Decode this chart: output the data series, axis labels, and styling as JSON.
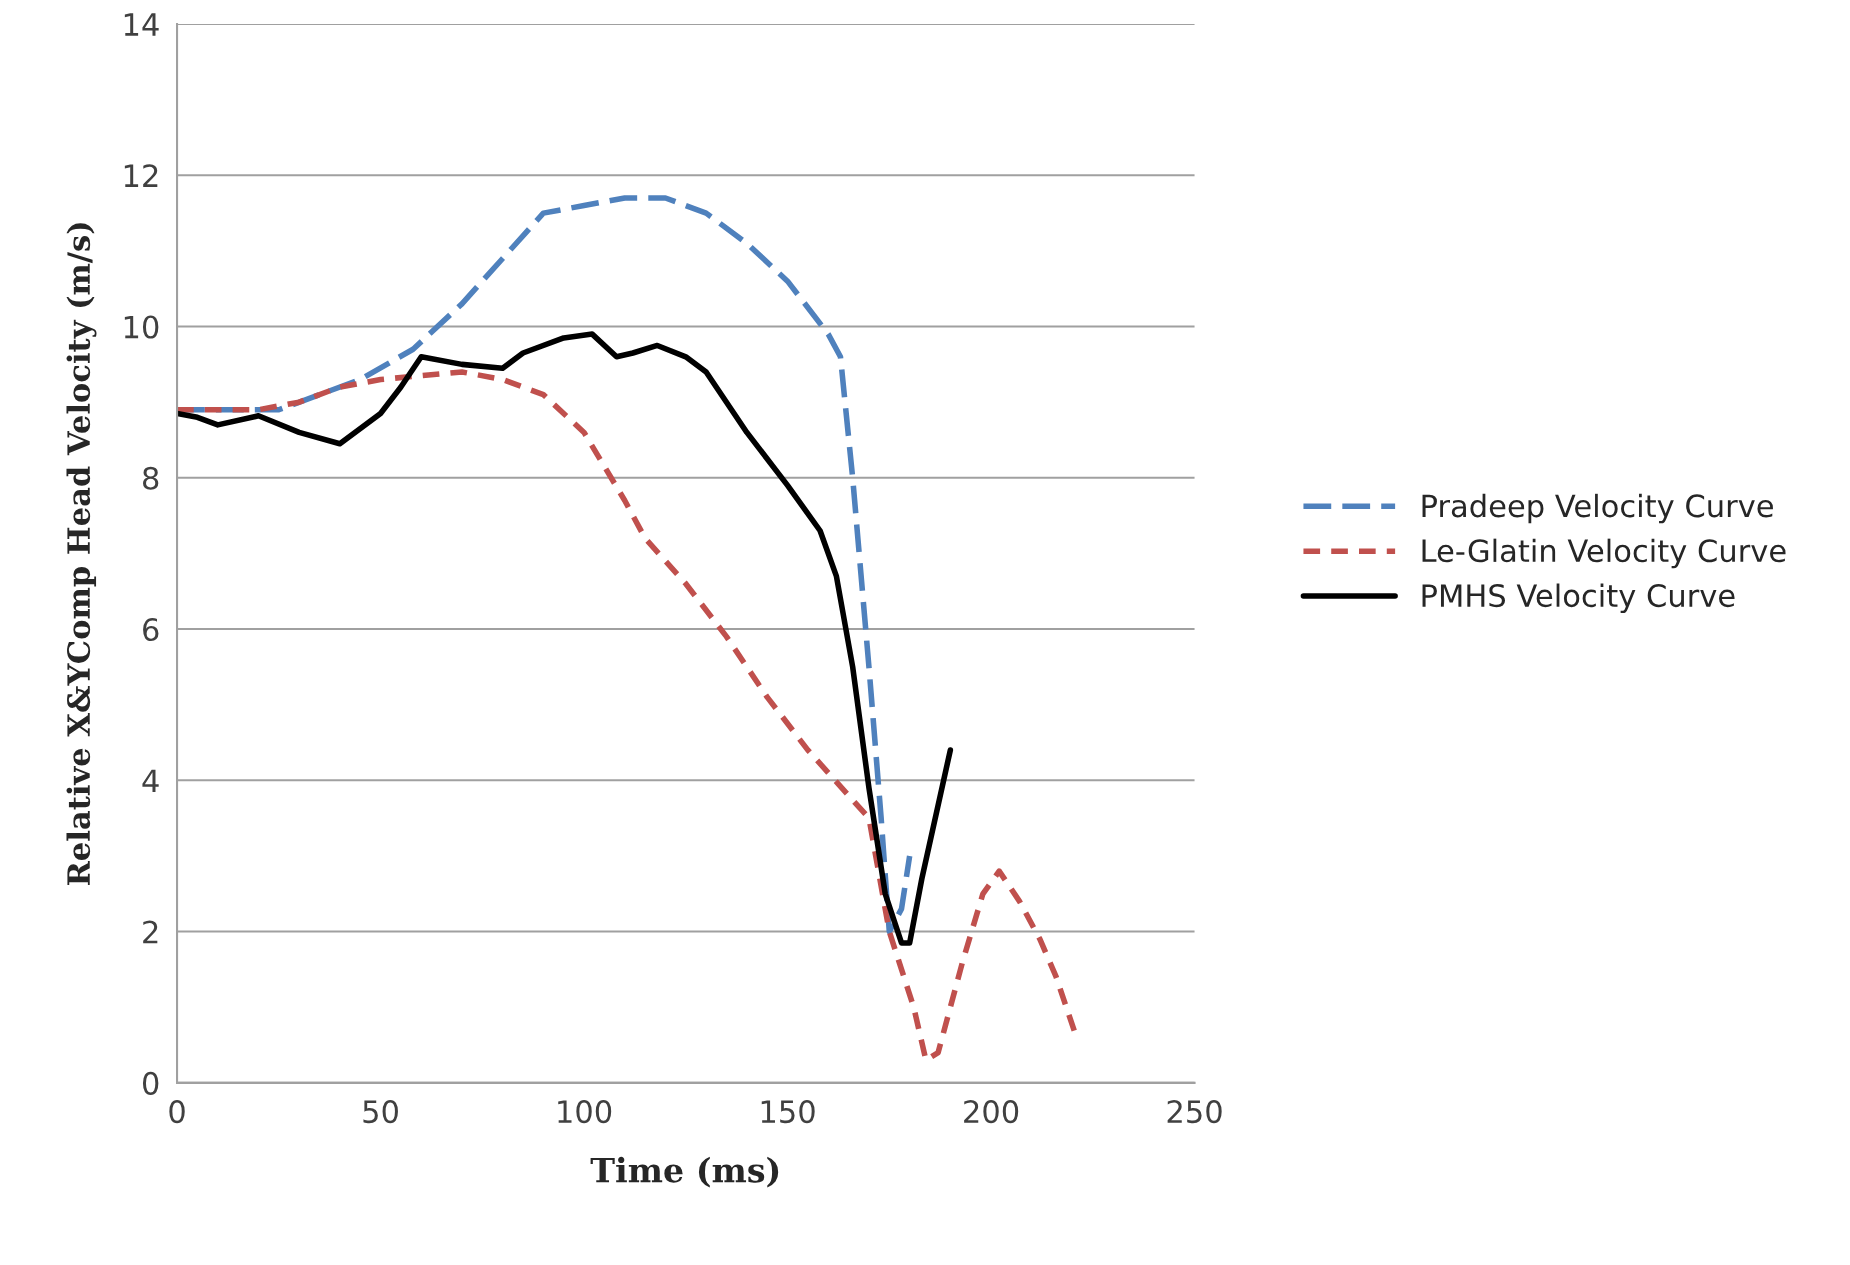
{
  "chart_data": {
    "type": "line",
    "xlabel": "Time (ms)",
    "ylabel": "Relative X&YComp Head Velocity (m/s)",
    "xlim": [
      0,
      250
    ],
    "ylim": [
      0,
      14
    ],
    "xticks": [
      0,
      50,
      100,
      150,
      200,
      250
    ],
    "yticks": [
      0,
      2,
      4,
      6,
      8,
      10,
      12,
      14
    ],
    "grid": "y",
    "legend": "right",
    "marker": "none",
    "series": [
      {
        "name": "Pradeep Velocity Curve",
        "color": "#4f81bd",
        "line_style": "dashed",
        "x": [
          0,
          15,
          25,
          35,
          45,
          58,
          70,
          80,
          90,
          100,
          110,
          120,
          130,
          140,
          150,
          160,
          163,
          166,
          170,
          173,
          175,
          178,
          180
        ],
        "values": [
          8.9,
          8.9,
          8.9,
          9.1,
          9.3,
          9.7,
          10.3,
          10.9,
          11.5,
          11.6,
          11.7,
          11.7,
          11.5,
          11.1,
          10.6,
          9.9,
          9.6,
          8.0,
          5.5,
          3.5,
          2.0,
          2.3,
          3.0
        ]
      },
      {
        "name": "Le-Glatin Velocity Curve",
        "color": "#c0504d",
        "line_style": "dotted",
        "x": [
          0,
          20,
          30,
          40,
          50,
          60,
          70,
          80,
          90,
          100,
          110,
          115,
          125,
          135,
          145,
          155,
          165,
          170,
          175,
          178,
          181,
          184,
          187,
          193,
          198,
          202,
          207,
          212,
          216,
          221
        ],
        "values": [
          8.9,
          8.9,
          9.0,
          9.2,
          9.3,
          9.35,
          9.4,
          9.3,
          9.1,
          8.6,
          7.7,
          7.2,
          6.6,
          5.9,
          5.1,
          4.4,
          3.8,
          3.5,
          2.0,
          1.5,
          1.0,
          0.3,
          0.4,
          1.6,
          2.5,
          2.8,
          2.4,
          1.9,
          1.4,
          0.6
        ]
      },
      {
        "name": "PMHS Velocity Curve",
        "color": "#000000",
        "line_style": "solid",
        "x": [
          0,
          5,
          10,
          20,
          30,
          40,
          50,
          55,
          60,
          70,
          80,
          85,
          95,
          102,
          108,
          112,
          118,
          125,
          130,
          140,
          150,
          158,
          162,
          166,
          170,
          174,
          178,
          180,
          183,
          190
        ],
        "values": [
          8.85,
          8.8,
          8.7,
          8.82,
          8.6,
          8.45,
          8.85,
          9.2,
          9.6,
          9.5,
          9.45,
          9.65,
          9.85,
          9.9,
          9.6,
          9.65,
          9.75,
          9.6,
          9.4,
          8.6,
          7.9,
          7.3,
          6.7,
          5.5,
          3.9,
          2.5,
          1.85,
          1.85,
          2.7,
          4.4
        ]
      }
    ]
  }
}
